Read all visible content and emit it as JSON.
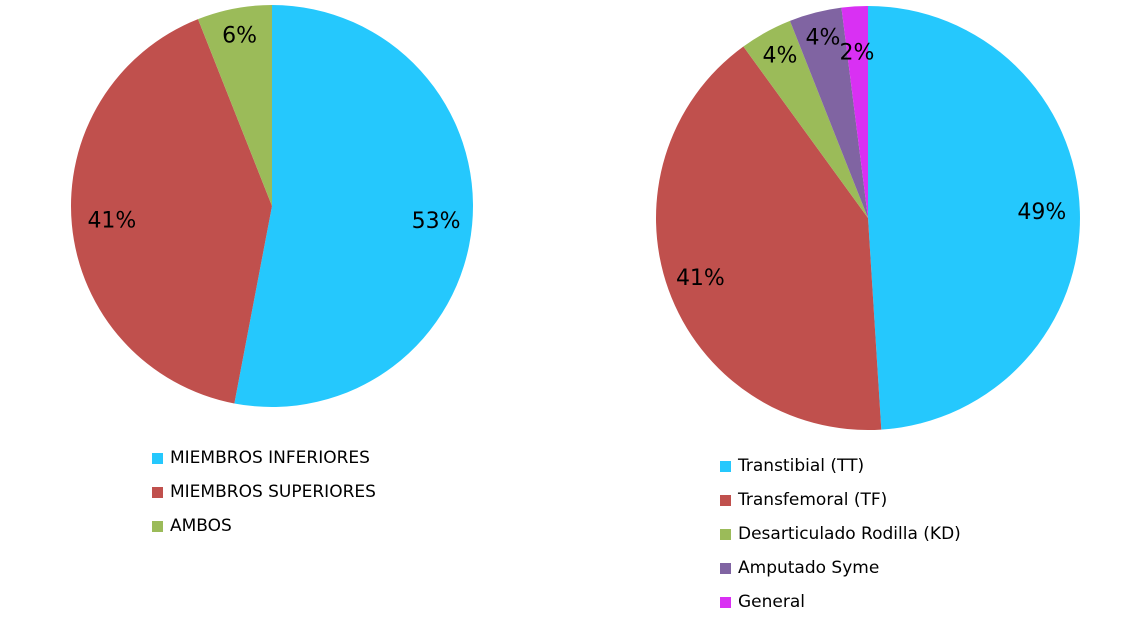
{
  "chart_data": [
    {
      "type": "pie",
      "categories": [
        "MIEMBROS INFERIORES",
        "MIEMBROS SUPERIORES",
        "AMBOS"
      ],
      "values": [
        53,
        41,
        6
      ],
      "labels": [
        "53%",
        "41%",
        "6%"
      ],
      "colors": [
        "#25C8FD",
        "#C0504D",
        "#9BBB59"
      ],
      "legend": "bottom"
    },
    {
      "type": "pie",
      "categories": [
        "Transtibial (TT)",
        "Transfemoral (TF)",
        "Desarticulado Rodilla (KD)",
        "Amputado Syme",
        "General"
      ],
      "values": [
        49,
        41,
        4,
        4,
        2
      ],
      "labels": [
        "49%",
        "41%",
        "4%",
        "4%",
        "2%"
      ],
      "colors": [
        "#25C8FD",
        "#C0504D",
        "#9BBB59",
        "#8064A2",
        "#D930F3"
      ],
      "legend": "bottom"
    }
  ]
}
